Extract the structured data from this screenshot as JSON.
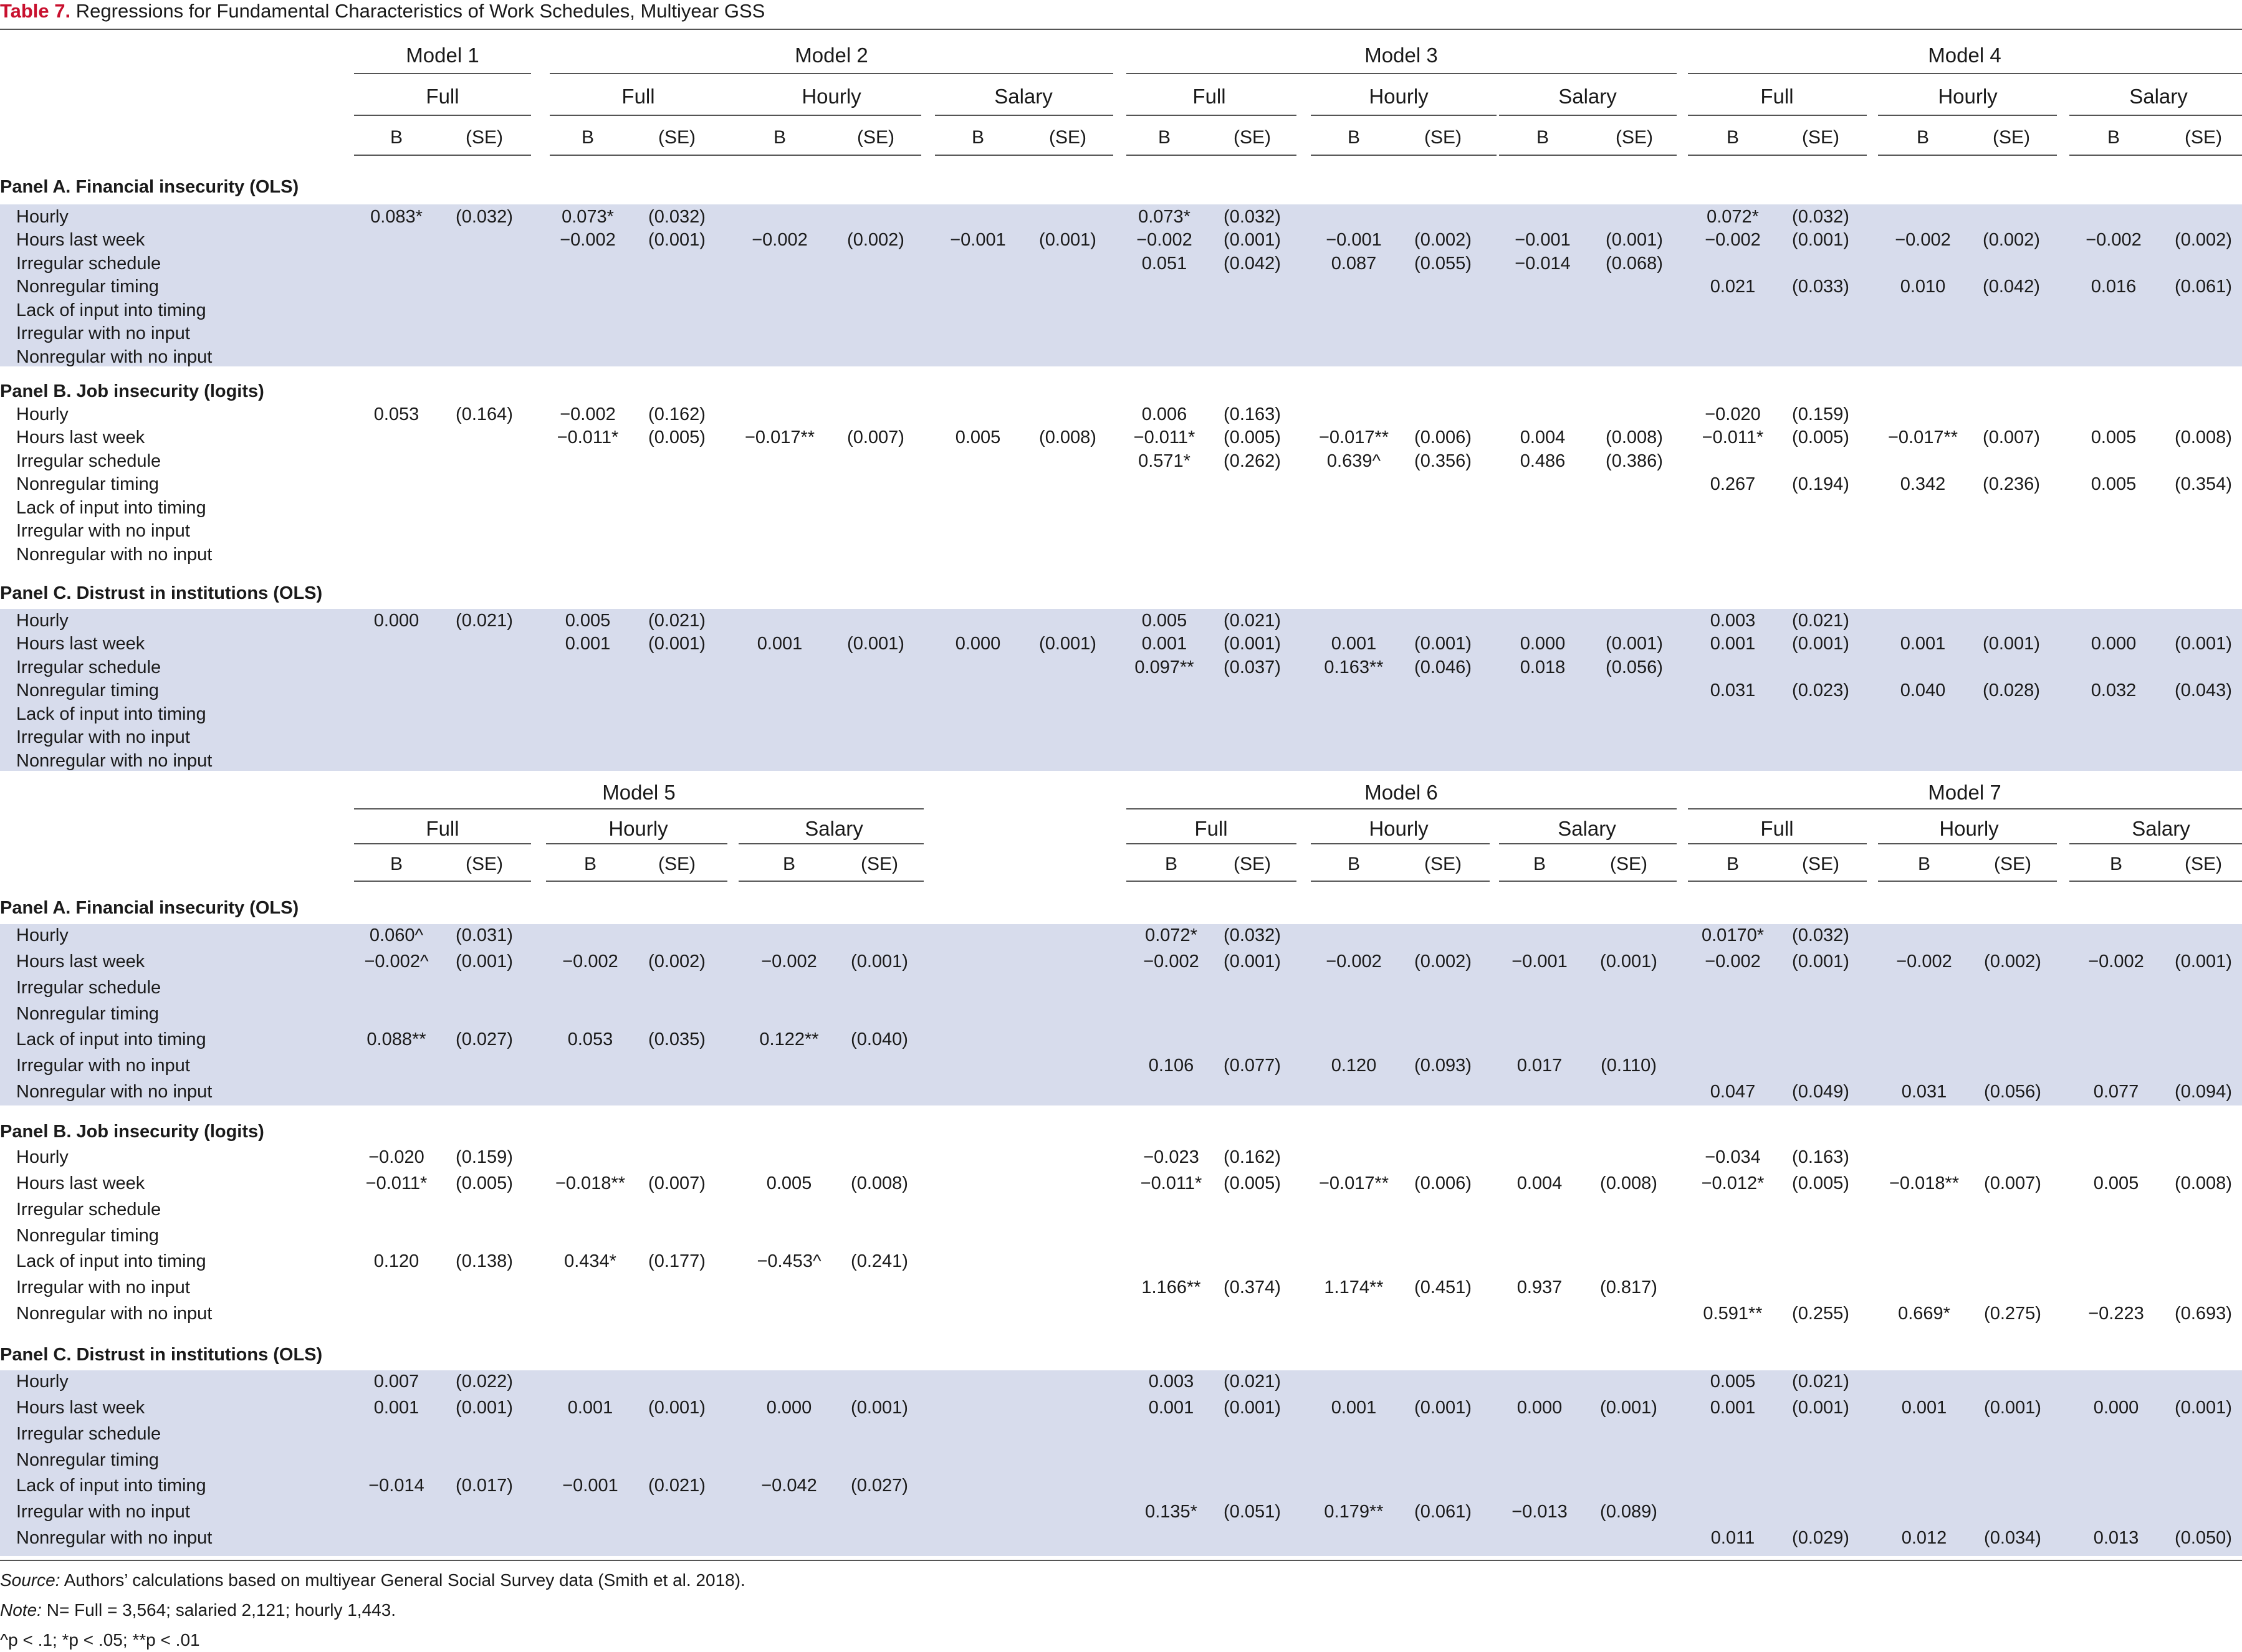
{
  "caption": {
    "label": "Table 7.",
    "title": "Regressions for Fundamental Characteristics of Work Schedules, Multiyear GSS"
  },
  "row_labels": [
    "Hourly",
    "Hours last week",
    "Irregular schedule",
    "Nonregular timing",
    "Lack of input into timing",
    "Irregular with no input",
    "Nonregular with no input"
  ],
  "stat_labels": [
    "B",
    "(SE)"
  ],
  "blocks": [
    {
      "models": [
        {
          "label": "Model 1",
          "subs": [
            "Full"
          ]
        },
        {
          "label": "Model 2",
          "subs": [
            "Full",
            "Hourly",
            "Salary"
          ]
        },
        {
          "label": "Model 3",
          "subs": [
            "Full",
            "Hourly",
            "Salary"
          ]
        },
        {
          "label": "Model 4",
          "subs": [
            "Full",
            "Hourly",
            "Salary"
          ]
        }
      ],
      "panels": [
        {
          "title": "Panel A. Financial insecurity (OLS)",
          "rows": [
            [
              [
                "0.083*",
                "(0.032)"
              ],
              [
                "0.073*",
                "(0.032)"
              ],
              null,
              null,
              [
                "0.073*",
                "(0.032)"
              ],
              null,
              null,
              [
                "0.072*",
                "(0.032)"
              ],
              null,
              null
            ],
            [
              null,
              [
                "−0.002",
                "(0.001)"
              ],
              [
                "−0.002",
                "(0.002)"
              ],
              [
                "−0.001",
                "(0.001)"
              ],
              [
                "−0.002",
                "(0.001)"
              ],
              [
                "−0.001",
                "(0.002)"
              ],
              [
                "−0.001",
                "(0.001)"
              ],
              [
                "−0.002",
                "(0.001)"
              ],
              [
                "−0.002",
                "(0.002)"
              ],
              [
                "−0.002",
                "(0.002)"
              ]
            ],
            [
              null,
              null,
              null,
              null,
              [
                "0.051",
                "(0.042)"
              ],
              [
                "0.087",
                "(0.055)"
              ],
              [
                "−0.014",
                "(0.068)"
              ],
              null,
              null,
              null
            ],
            [
              null,
              null,
              null,
              null,
              null,
              null,
              null,
              [
                "0.021",
                "(0.033)"
              ],
              [
                "0.010",
                "(0.042)"
              ],
              [
                "0.016",
                "(0.061)"
              ]
            ],
            [
              null,
              null,
              null,
              null,
              null,
              null,
              null,
              null,
              null,
              null
            ],
            [
              null,
              null,
              null,
              null,
              null,
              null,
              null,
              null,
              null,
              null
            ],
            [
              null,
              null,
              null,
              null,
              null,
              null,
              null,
              null,
              null,
              null
            ]
          ]
        },
        {
          "title": "Panel B. Job insecurity (logits)",
          "rows": [
            [
              [
                "0.053",
                "(0.164)"
              ],
              [
                "−0.002",
                "(0.162)"
              ],
              null,
              null,
              [
                "0.006",
                "(0.163)"
              ],
              null,
              null,
              [
                "−0.020",
                "(0.159)"
              ],
              null,
              null
            ],
            [
              null,
              [
                "−0.011*",
                "(0.005)"
              ],
              [
                "−0.017**",
                "(0.007)"
              ],
              [
                "0.005",
                "(0.008)"
              ],
              [
                "−0.011*",
                "(0.005)"
              ],
              [
                "−0.017**",
                "(0.006)"
              ],
              [
                "0.004",
                "(0.008)"
              ],
              [
                "−0.011*",
                "(0.005)"
              ],
              [
                "−0.017**",
                "(0.007)"
              ],
              [
                "0.005",
                "(0.008)"
              ]
            ],
            [
              null,
              null,
              null,
              null,
              [
                "0.571*",
                "(0.262)"
              ],
              [
                "0.639^",
                "(0.356)"
              ],
              [
                "0.486",
                "(0.386)"
              ],
              null,
              null,
              null
            ],
            [
              null,
              null,
              null,
              null,
              null,
              null,
              null,
              [
                "0.267",
                "(0.194)"
              ],
              [
                "0.342",
                "(0.236)"
              ],
              [
                "0.005",
                "(0.354)"
              ]
            ],
            [
              null,
              null,
              null,
              null,
              null,
              null,
              null,
              null,
              null,
              null
            ],
            [
              null,
              null,
              null,
              null,
              null,
              null,
              null,
              null,
              null,
              null
            ],
            [
              null,
              null,
              null,
              null,
              null,
              null,
              null,
              null,
              null,
              null
            ]
          ]
        },
        {
          "title": "Panel C. Distrust in institutions (OLS)",
          "rows": [
            [
              [
                "0.000",
                "(0.021)"
              ],
              [
                "0.005",
                "(0.021)"
              ],
              null,
              null,
              [
                "0.005",
                "(0.021)"
              ],
              null,
              null,
              [
                "0.003",
                "(0.021)"
              ],
              null,
              null
            ],
            [
              null,
              [
                "0.001",
                "(0.001)"
              ],
              [
                "0.001",
                "(0.001)"
              ],
              [
                "0.000",
                "(0.001)"
              ],
              [
                "0.001",
                "(0.001)"
              ],
              [
                "0.001",
                "(0.001)"
              ],
              [
                "0.000",
                "(0.001)"
              ],
              [
                "0.001",
                "(0.001)"
              ],
              [
                "0.001",
                "(0.001)"
              ],
              [
                "0.000",
                "(0.001)"
              ]
            ],
            [
              null,
              null,
              null,
              null,
              [
                "0.097**",
                "(0.037)"
              ],
              [
                "0.163**",
                "(0.046)"
              ],
              [
                "0.018",
                "(0.056)"
              ],
              null,
              null,
              null
            ],
            [
              null,
              null,
              null,
              null,
              null,
              null,
              null,
              [
                "0.031",
                "(0.023)"
              ],
              [
                "0.040",
                "(0.028)"
              ],
              [
                "0.032",
                "(0.043)"
              ]
            ],
            [
              null,
              null,
              null,
              null,
              null,
              null,
              null,
              null,
              null,
              null
            ],
            [
              null,
              null,
              null,
              null,
              null,
              null,
              null,
              null,
              null,
              null
            ],
            [
              null,
              null,
              null,
              null,
              null,
              null,
              null,
              null,
              null,
              null
            ]
          ]
        }
      ]
    },
    {
      "models": [
        {
          "label": "Model 5",
          "subs": [
            "Full",
            "Hourly",
            "Salary"
          ]
        },
        {
          "label": "Model 6",
          "subs": [
            "Full",
            "Hourly",
            "Salary"
          ]
        },
        {
          "label": "Model 7",
          "subs": [
            "Full",
            "Hourly",
            "Salary"
          ]
        }
      ],
      "panels": [
        {
          "title": "Panel A. Financial insecurity (OLS)",
          "rows": [
            [
              [
                "0.060^",
                "(0.031)"
              ],
              null,
              null,
              [
                "0.072*",
                "(0.032)"
              ],
              null,
              null,
              [
                "0.0170*",
                "(0.032)"
              ],
              null,
              null
            ],
            [
              [
                "−0.002^",
                "(0.001)"
              ],
              [
                "−0.002",
                "(0.002)"
              ],
              [
                "−0.002",
                "(0.001)"
              ],
              [
                "−0.002",
                "(0.001)"
              ],
              [
                "−0.002",
                "(0.002)"
              ],
              [
                "−0.001",
                "(0.001)"
              ],
              [
                "−0.002",
                "(0.001)"
              ],
              [
                "−0.002",
                "(0.002)"
              ],
              [
                "−0.002",
                "(0.001)"
              ]
            ],
            [
              null,
              null,
              null,
              null,
              null,
              null,
              null,
              null,
              null
            ],
            [
              null,
              null,
              null,
              null,
              null,
              null,
              null,
              null,
              null
            ],
            [
              [
                "0.088**",
                "(0.027)"
              ],
              [
                "0.053",
                "(0.035)"
              ],
              [
                "0.122**",
                "(0.040)"
              ],
              null,
              null,
              null,
              null,
              null,
              null
            ],
            [
              null,
              null,
              null,
              [
                "0.106",
                "(0.077)"
              ],
              [
                "0.120",
                "(0.093)"
              ],
              [
                "0.017",
                "(0.110)"
              ],
              null,
              null,
              null
            ],
            [
              null,
              null,
              null,
              null,
              null,
              null,
              [
                "0.047",
                "(0.049)"
              ],
              [
                "0.031",
                "(0.056)"
              ],
              [
                "0.077",
                "(0.094)"
              ]
            ]
          ]
        },
        {
          "title": "Panel B. Job insecurity (logits)",
          "rows": [
            [
              [
                "−0.020",
                "(0.159)"
              ],
              null,
              null,
              [
                "−0.023",
                "(0.162)"
              ],
              null,
              null,
              [
                "−0.034",
                "(0.163)"
              ],
              null,
              null
            ],
            [
              [
                "−0.011*",
                "(0.005)"
              ],
              [
                "−0.018**",
                "(0.007)"
              ],
              [
                "0.005",
                "(0.008)"
              ],
              [
                "−0.011*",
                "(0.005)"
              ],
              [
                "−0.017**",
                "(0.006)"
              ],
              [
                "0.004",
                "(0.008)"
              ],
              [
                "−0.012*",
                "(0.005)"
              ],
              [
                "−0.018**",
                "(0.007)"
              ],
              [
                "0.005",
                "(0.008)"
              ]
            ],
            [
              null,
              null,
              null,
              null,
              null,
              null,
              null,
              null,
              null
            ],
            [
              null,
              null,
              null,
              null,
              null,
              null,
              null,
              null,
              null
            ],
            [
              [
                "0.120",
                "(0.138)"
              ],
              [
                "0.434*",
                "(0.177)"
              ],
              [
                "−0.453^",
                "(0.241)"
              ],
              null,
              null,
              null,
              null,
              null,
              null
            ],
            [
              null,
              null,
              null,
              [
                "1.166**",
                "(0.374)"
              ],
              [
                "1.174**",
                "(0.451)"
              ],
              [
                "0.937",
                "(0.817)"
              ],
              null,
              null,
              null
            ],
            [
              null,
              null,
              null,
              null,
              null,
              null,
              [
                "0.591**",
                "(0.255)"
              ],
              [
                "0.669*",
                "(0.275)"
              ],
              [
                "−0.223",
                "(0.693)"
              ]
            ]
          ]
        },
        {
          "title": "Panel C. Distrust in institutions (OLS)",
          "rows": [
            [
              [
                "0.007",
                "(0.022)"
              ],
              null,
              null,
              [
                "0.003",
                "(0.021)"
              ],
              null,
              null,
              [
                "0.005",
                "(0.021)"
              ],
              null,
              null
            ],
            [
              [
                "0.001",
                "(0.001)"
              ],
              [
                "0.001",
                "(0.001)"
              ],
              [
                "0.000",
                "(0.001)"
              ],
              [
                "0.001",
                "(0.001)"
              ],
              [
                "0.001",
                "(0.001)"
              ],
              [
                "0.000",
                "(0.001)"
              ],
              [
                "0.001",
                "(0.001)"
              ],
              [
                "0.001",
                "(0.001)"
              ],
              [
                "0.000",
                "(0.001)"
              ]
            ],
            [
              null,
              null,
              null,
              null,
              null,
              null,
              null,
              null,
              null
            ],
            [
              null,
              null,
              null,
              null,
              null,
              null,
              null,
              null,
              null
            ],
            [
              [
                "−0.014",
                "(0.017)"
              ],
              [
                "−0.001",
                "(0.021)"
              ],
              [
                "−0.042",
                "(0.027)"
              ],
              null,
              null,
              null,
              null,
              null,
              null
            ],
            [
              null,
              null,
              null,
              [
                "0.135*",
                "(0.051)"
              ],
              [
                "0.179**",
                "(0.061)"
              ],
              [
                "−0.013",
                "(0.089)"
              ],
              null,
              null,
              null
            ],
            [
              null,
              null,
              null,
              null,
              null,
              null,
              [
                "0.011",
                "(0.029)"
              ],
              [
                "0.012",
                "(0.034)"
              ],
              [
                "0.013",
                "(0.050)"
              ]
            ]
          ]
        }
      ]
    }
  ],
  "notes": {
    "source_label": "Source:",
    "source_text": " Authors’ calculations based on multiyear General Social Survey data (Smith et al. 2018).",
    "note_label": "Note:",
    "note_text": " N= Full = 3,564; salaried 2,121; hourly 1,443.",
    "signif": "^p < .1; *p < .05; **p < .01"
  }
}
